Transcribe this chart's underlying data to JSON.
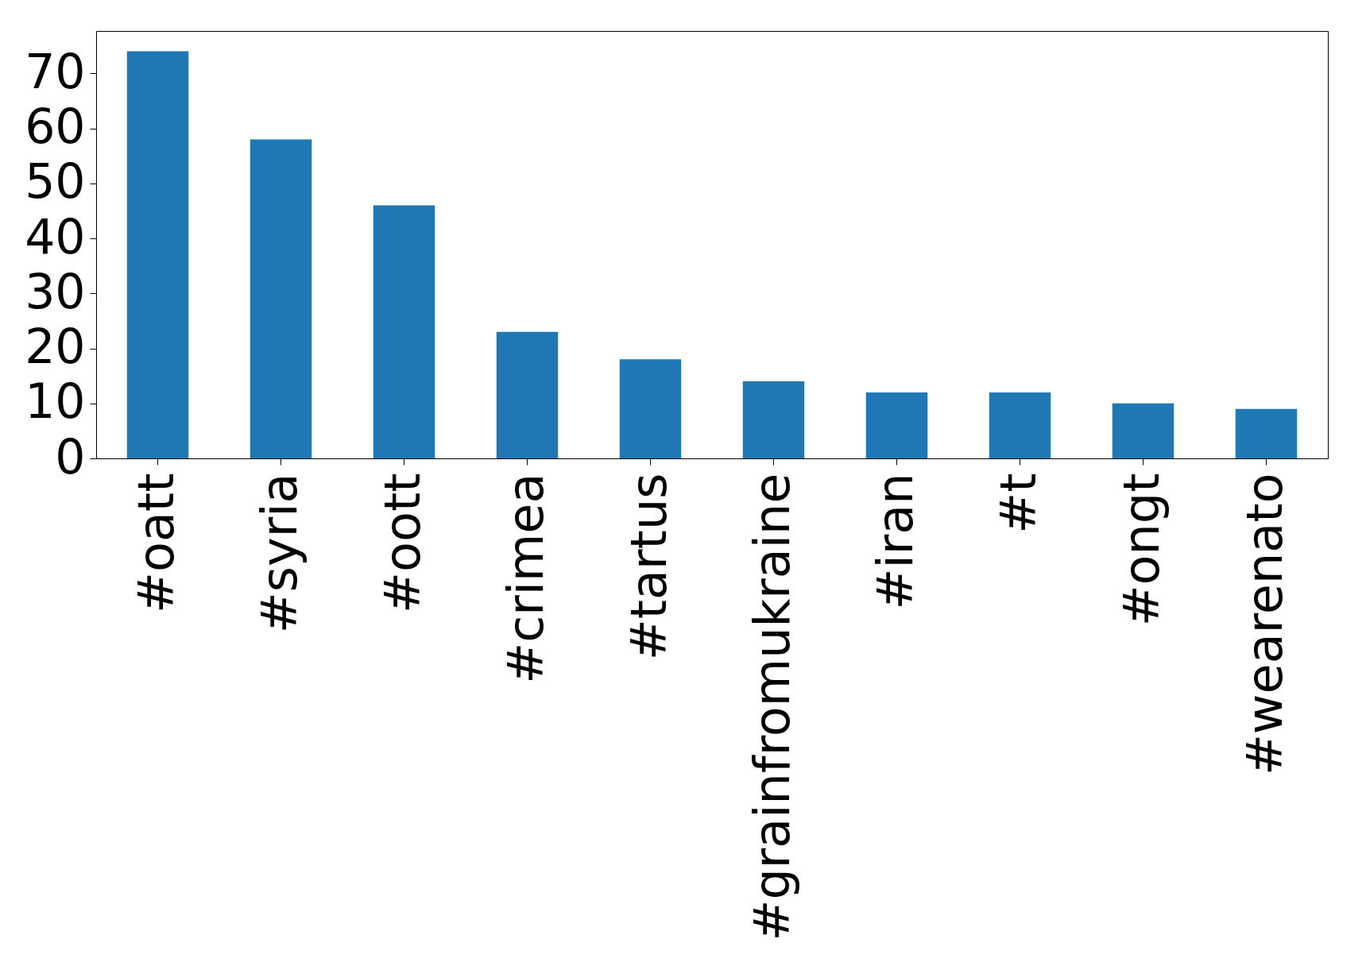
{
  "chart_data": {
    "type": "bar",
    "categories": [
      "#oatt",
      "#syria",
      "#oott",
      "#crimea",
      "#tartus",
      "#grainfromukraine",
      "#iran",
      "#t",
      "#ongt",
      "#wearenato"
    ],
    "values": [
      74,
      58,
      46,
      23,
      18,
      14,
      12,
      12,
      10,
      9
    ],
    "color": "#1f77b4",
    "ylim": [
      0,
      77.7
    ],
    "yticks": [
      0,
      10,
      20,
      30,
      40,
      50,
      60,
      70
    ],
    "grid": false
  }
}
